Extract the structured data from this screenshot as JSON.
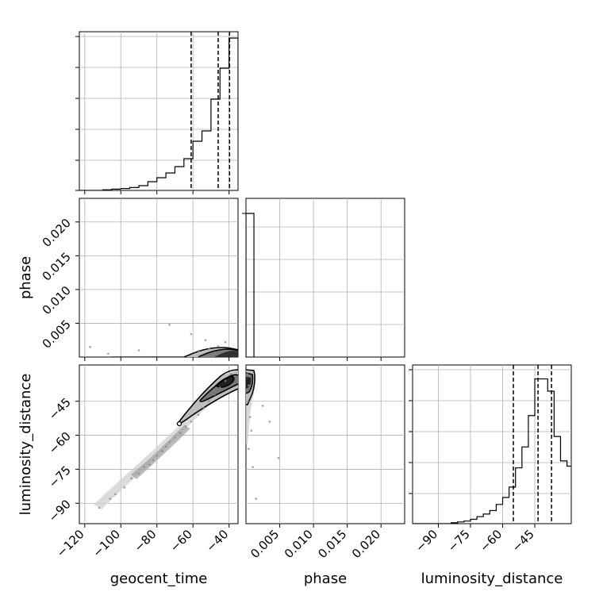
{
  "chart_data": [
    {
      "type": "histogram",
      "panel": "geocent_time marginal",
      "x_range": [
        -123,
        -35
      ],
      "bins_x": [
        -125,
        -120,
        -115,
        -110,
        -105,
        -100,
        -95,
        -90,
        -85,
        -80,
        -75,
        -70,
        -65,
        -60,
        -55,
        -50,
        -45,
        -40,
        -35
      ],
      "values": [
        0,
        0,
        0,
        0.004,
        0.008,
        0.012,
        0.018,
        0.03,
        0.055,
        0.08,
        0.11,
        0.15,
        0.2,
        0.31,
        0.375,
        0.575,
        0.77,
        0.96,
        0.375
      ],
      "quantile_lines": [
        -61,
        -46,
        -39.7
      ],
      "grid": true
    },
    {
      "type": "histogram",
      "panel": "phase marginal",
      "x_range": [
        0,
        0.0235
      ],
      "x_ticks": [
        "0.005",
        "0.010",
        "0.015",
        "0.020"
      ],
      "x_tick_values": [
        0.005,
        0.01,
        0.015,
        0.02
      ],
      "xlabel": "phase",
      "bins_x": [
        0,
        0.00118
      ],
      "values": [
        1.0
      ],
      "grid": true
    },
    {
      "type": "histogram",
      "panel": "luminosity_distance marginal",
      "x_range": [
        -102,
        -28
      ],
      "x_ticks": [
        "−90",
        "−75",
        "−60",
        "−45"
      ],
      "x_tick_values": [
        -90,
        -75,
        -60,
        -45
      ],
      "xlabel": "luminosity_distance",
      "bins_x": [
        -102,
        -99,
        -96,
        -93,
        -90,
        -87,
        -84,
        -81,
        -78,
        -75,
        -72,
        -69,
        -66,
        -63,
        -60,
        -57,
        -54,
        -51,
        -48,
        -45,
        -42,
        -39,
        -36,
        -33,
        -30,
        -28
      ],
      "values": [
        0,
        0,
        0,
        0,
        0,
        0,
        0.005,
        0.01,
        0.015,
        0.025,
        0.04,
        0.055,
        0.075,
        0.11,
        0.15,
        0.21,
        0.32,
        0.44,
        0.62,
        0.83,
        0.83,
        0.76,
        0.5,
        0.36,
        0.33
      ],
      "quantile_lines": [
        -55,
        -43.5,
        -37.2
      ],
      "grid": true
    },
    {
      "type": "scatter",
      "panel": "geocent_time vs phase",
      "x_range": [
        -123,
        -35
      ],
      "y_range": [
        0,
        0.0235
      ],
      "y_ticks": [
        "0.005",
        "0.010",
        "0.015",
        "0.020"
      ],
      "y_tick_values": [
        0.005,
        0.01,
        0.015,
        0.02
      ],
      "ylabel": "phase",
      "points": [
        [
          -117,
          0.0015
        ],
        [
          -107,
          0.0005
        ],
        [
          -90,
          0.001
        ],
        [
          -73,
          0.0048
        ],
        [
          -61,
          0.0034
        ],
        [
          -57,
          0.0009
        ],
        [
          -53,
          0.0025
        ],
        [
          -51,
          0.0012
        ],
        [
          -46,
          0.0016
        ],
        [
          -42,
          0.0022
        ]
      ],
      "grid": true
    },
    {
      "type": "scatter",
      "panel": "geocent_time vs luminosity_distance",
      "x_range": [
        -123,
        -35
      ],
      "y_range": [
        -99,
        -29
      ],
      "x_ticks": [
        "−120",
        "−100",
        "−80",
        "−60",
        "−40"
      ],
      "x_tick_values": [
        -120,
        -100,
        -80,
        -60,
        -40
      ],
      "y_ticks": [
        "−90",
        "−75",
        "−60",
        "−45"
      ],
      "y_tick_values": [
        -90,
        -75,
        -60,
        -45
      ],
      "xlabel": "geocent_time",
      "ylabel": "luminosity_distance",
      "points": [
        [
          -112,
          -92
        ],
        [
          -106,
          -88
        ],
        [
          -103,
          -86
        ],
        [
          -98,
          -83
        ],
        [
          -94,
          -79
        ],
        [
          -90,
          -77
        ],
        [
          -87,
          -74
        ],
        [
          -84,
          -73
        ],
        [
          -82,
          -71
        ],
        [
          -80,
          -69
        ],
        [
          -77,
          -67
        ],
        [
          -75,
          -65
        ],
        [
          -73,
          -63
        ],
        [
          -70,
          -61
        ],
        [
          -67,
          -59
        ],
        [
          -64,
          -56
        ],
        [
          -61,
          -54
        ],
        [
          -57,
          -51
        ],
        [
          -54,
          -48
        ],
        [
          -51,
          -45
        ],
        [
          -48,
          -42
        ],
        [
          -45,
          -39
        ],
        [
          -42,
          -36
        ],
        [
          -39,
          -33
        ]
      ],
      "grid": true
    },
    {
      "type": "scatter",
      "panel": "phase vs luminosity_distance",
      "x_range": [
        0,
        0.0235
      ],
      "y_range": [
        -99,
        -29
      ],
      "points": [
        [
          0.0002,
          -33
        ],
        [
          0.0004,
          -38
        ],
        [
          0.0003,
          -45
        ],
        [
          0.0006,
          -52
        ],
        [
          0.0008,
          -58
        ],
        [
          0.0004,
          -66
        ],
        [
          0.001,
          -74
        ],
        [
          0.0025,
          -47
        ],
        [
          0.0035,
          -54
        ],
        [
          0.0048,
          -70
        ],
        [
          0.0015,
          -88
        ]
      ],
      "grid": true
    }
  ]
}
